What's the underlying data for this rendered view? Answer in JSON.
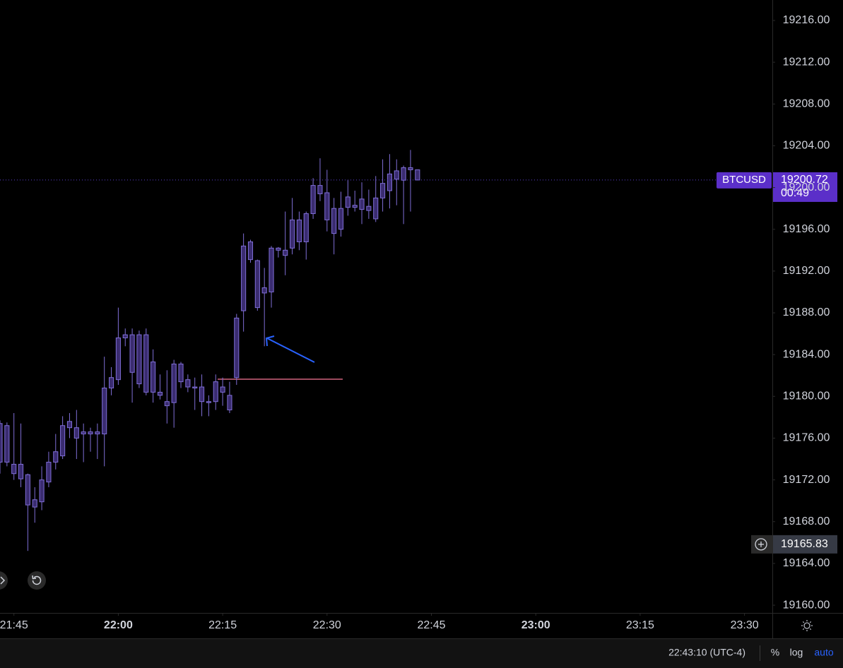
{
  "chart_data": {
    "type": "candlestick",
    "symbol": "BTCUSD",
    "countdown": "00:49",
    "crosshair_price": 19165.83,
    "ylim": [
      19159.26,
      19217.96
    ],
    "yticks": [
      {
        "value": 19160,
        "label": "19160.00"
      },
      {
        "value": 19164,
        "label": "19164.00"
      },
      {
        "value": 19168,
        "label": "19168.00"
      },
      {
        "value": 19172,
        "label": "19172.00"
      },
      {
        "value": 19176,
        "label": "19176.00"
      },
      {
        "value": 19180,
        "label": "19180.00"
      },
      {
        "value": 19184,
        "label": "19184.00"
      },
      {
        "value": 19188,
        "label": "19188.00"
      },
      {
        "value": 19192,
        "label": "19192.00"
      },
      {
        "value": 19196,
        "label": "19196.00"
      },
      {
        "value": 19200,
        "label": "19200.00"
      },
      {
        "value": 19204,
        "label": "19204.00"
      },
      {
        "value": 19208,
        "label": "19208.00"
      },
      {
        "value": 19212,
        "label": "19212.00"
      },
      {
        "value": 19216,
        "label": "19216.00"
      }
    ],
    "xlim": [
      "21:43",
      "23:34"
    ],
    "xticks": [
      "21:45",
      "22:00",
      "22:15",
      "22:30",
      "22:45",
      "23:00",
      "23:15",
      "23:30"
    ],
    "series": [
      {
        "name": "BTCUSD",
        "color": "#7f6ed6",
        "x": [
          "21:43",
          "21:44",
          "21:45",
          "21:46",
          "21:47",
          "21:48",
          "21:49",
          "21:50",
          "21:51",
          "21:52",
          "21:53",
          "21:54",
          "21:55",
          "21:56",
          "21:57",
          "21:58",
          "21:59",
          "22:00",
          "22:01",
          "22:02",
          "22:03",
          "22:04",
          "22:05",
          "22:06",
          "22:07",
          "22:08",
          "22:09",
          "22:10",
          "22:11",
          "22:12",
          "22:13",
          "22:14",
          "22:15",
          "22:16",
          "22:17",
          "22:18",
          "22:19",
          "22:20",
          "22:21",
          "22:22",
          "22:23",
          "22:24",
          "22:25",
          "22:26",
          "22:27",
          "22:28",
          "22:29",
          "22:30",
          "22:31",
          "22:32",
          "22:33",
          "22:34",
          "22:35",
          "22:36",
          "22:37",
          "22:38",
          "22:39",
          "22:40",
          "22:41",
          "22:42",
          "22:43"
        ],
        "open": [
          19177.4,
          19173.7,
          19173.5,
          19173.5,
          19172.5,
          19169.4,
          19169.9,
          19171.8,
          19173.7,
          19174.3,
          19177.0,
          19177.0,
          19176.4,
          19176.6,
          19176.4,
          19176.4,
          19180.8,
          19181.6,
          19185.6,
          19185.9,
          19181.2,
          19185.9,
          19180.4,
          19180.4,
          19179.5,
          19179.4,
          19183.1,
          19181.6,
          19180.9,
          19180.9,
          19179.5,
          19179.5,
          19180.9,
          19180.1,
          19181.8,
          19188.2,
          19194.8,
          19193.0,
          19189.9,
          19190.0,
          19194.0,
          19193.5,
          19194.2,
          19196.9,
          19194.8,
          19197.5,
          19200.2,
          19199.5,
          19195.6,
          19196.0,
          19198.1,
          19198.3,
          19198.9,
          19197.8,
          19197.0,
          19199.0,
          19199.7,
          19200.8,
          19201.9,
          19201.7,
          19201.7
        ],
        "high": [
          19177.7,
          19177.5,
          19178.4,
          19177.4,
          19172.6,
          19171.3,
          19173.3,
          19174.7,
          19176.4,
          19178.1,
          19178.4,
          19178.7,
          19177.4,
          19177.0,
          19177.4,
          19183.8,
          19182.8,
          19188.5,
          19186.5,
          19186.5,
          19186.3,
          19186.5,
          19184.5,
          19182.1,
          19182.5,
          19183.5,
          19183.3,
          19182.1,
          19181.8,
          19182.1,
          19180.1,
          19182.1,
          19181.8,
          19181.4,
          19187.9,
          19195.6,
          19195.0,
          19193.1,
          19192.3,
          19194.4,
          19194.3,
          19197.7,
          19199.0,
          19197.7,
          19197.7,
          19200.9,
          19202.8,
          19201.7,
          19199.0,
          19199.6,
          19200.7,
          19199.7,
          19200.5,
          19199.8,
          19201.1,
          19202.7,
          19203.2,
          19202.7,
          19202.1,
          19203.6,
          19201.7
        ],
        "low": [
          19172.6,
          19173.3,
          19172.0,
          19171.3,
          19165.2,
          19167.9,
          19169.1,
          19171.3,
          19173.0,
          19174.0,
          19176.0,
          19174.0,
          19173.7,
          19174.7,
          19174.0,
          19173.3,
          19180.1,
          19181.1,
          19184.8,
          19179.4,
          19180.8,
          19180.1,
          19179.4,
          19179.7,
          19177.4,
          19177.0,
          19180.8,
          19180.4,
          19178.7,
          19178.1,
          19178.1,
          19178.7,
          19179.1,
          19178.4,
          19181.1,
          19186.2,
          19192.8,
          19188.2,
          19184.8,
          19188.5,
          19193.3,
          19191.6,
          19193.6,
          19194.0,
          19193.1,
          19197.0,
          19198.7,
          19195.8,
          19193.6,
          19195.3,
          19197.3,
          19197.7,
          19196.5,
          19197.0,
          19196.7,
          19197.7,
          19198.0,
          19198.3,
          19196.5,
          19197.7,
          19200.72
        ],
        "close": [
          19173.7,
          19177.2,
          19172.6,
          19172.1,
          19169.6,
          19170.1,
          19172.0,
          19173.7,
          19174.7,
          19177.2,
          19177.6,
          19176.0,
          19176.6,
          19176.4,
          19176.6,
          19180.8,
          19181.8,
          19185.6,
          19185.9,
          19182.3,
          19185.9,
          19180.4,
          19183.3,
          19180.1,
          19179.1,
          19183.1,
          19181.4,
          19180.9,
          19180.8,
          19179.5,
          19179.4,
          19181.4,
          19180.4,
          19178.7,
          19187.5,
          19194.4,
          19193.1,
          19188.5,
          19190.4,
          19194.2,
          19194.2,
          19194.0,
          19196.9,
          19194.8,
          19197.5,
          19200.2,
          19199.4,
          19196.9,
          19198.0,
          19198.0,
          19199.1,
          19198.1,
          19197.9,
          19198.2,
          19199.0,
          19200.4,
          19201.3,
          19201.6,
          19200.7,
          19201.9,
          19200.72
        ]
      }
    ]
  },
  "footer": {
    "time": "22:43:10 (UTC-4)",
    "buttons": [
      "%",
      "log",
      "auto"
    ]
  }
}
